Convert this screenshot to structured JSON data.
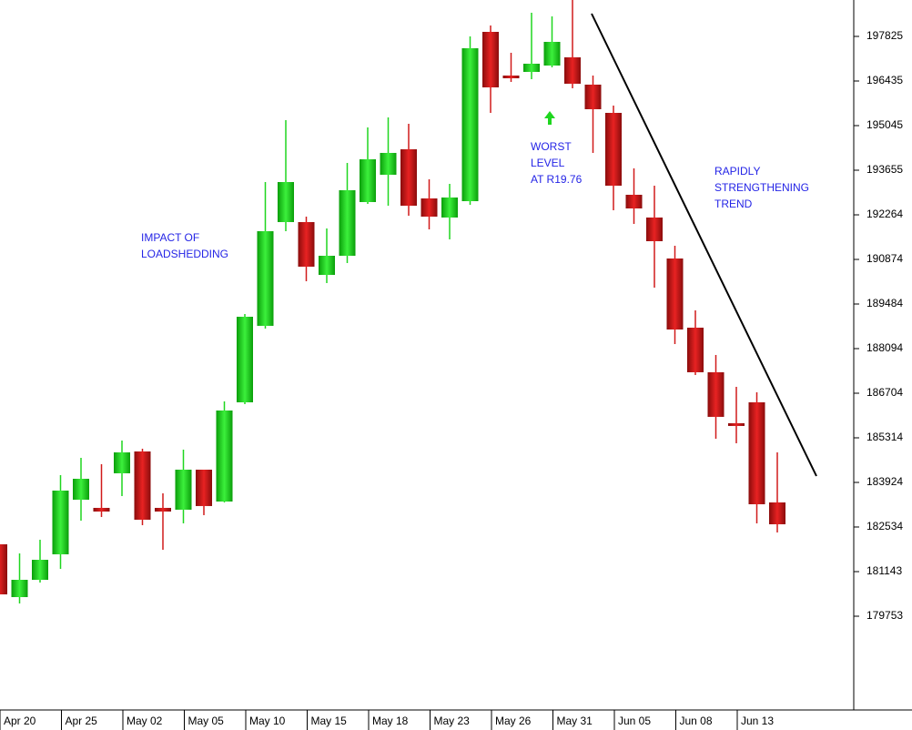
{
  "chart_data": {
    "type": "candlestick",
    "categories": [
      "Apr 20",
      null,
      null,
      "Apr 25",
      null,
      null,
      "May 02",
      null,
      null,
      "May 05",
      null,
      null,
      "May 10",
      null,
      null,
      "May 15",
      null,
      null,
      "May 18",
      null,
      null,
      "May 23",
      null,
      null,
      "May 26",
      null,
      null,
      "May 31",
      null,
      null,
      "Jun 05",
      null,
      null,
      "Jun 08",
      null,
      null,
      "Jun 13",
      null,
      null
    ],
    "open": [
      181995,
      180349,
      180888,
      181683,
      183385,
      183130,
      184208,
      184889,
      183130,
      183073,
      184321,
      183328,
      186420,
      188804,
      192038,
      192038,
      190392,
      190988,
      192662,
      193513,
      194307,
      192775,
      192180,
      192690,
      197967,
      196577,
      196719,
      196917,
      197173,
      196322,
      195442,
      192889,
      192180,
      190903,
      188747,
      187357,
      185740,
      186420,
      183300
    ],
    "high": [
      182222,
      181711,
      182137,
      184151,
      184690,
      184491,
      185229,
      184974,
      183583,
      184945,
      184321,
      186449,
      189172,
      193286,
      195215,
      192208,
      191839,
      193882,
      194988,
      195300,
      195102,
      193371,
      193229,
      197825,
      198166,
      197315,
      198563,
      198449,
      198960,
      196605,
      195669,
      193712,
      193172,
      191300,
      189286,
      187896,
      186903,
      186733,
      184860
    ],
    "low": [
      180094,
      180151,
      180803,
      181229,
      182732,
      182846,
      183498,
      182591,
      181825,
      182648,
      182903,
      183300,
      186364,
      188718,
      191754,
      190194,
      190137,
      190761,
      192605,
      192548,
      192236,
      191811,
      191499,
      192577,
      195442,
      196407,
      196492,
      196861,
      196208,
      194194,
      192407,
      191981,
      189995,
      188236,
      187272,
      185285,
      185144,
      182648,
      182364
    ],
    "close": [
      180434,
      180888,
      181512,
      183669,
      184037,
      183016,
      184860,
      182761,
      183016,
      184321,
      183187,
      186165,
      189087,
      191754,
      193286,
      190648,
      190988,
      193031,
      193995,
      194194,
      192548,
      192208,
      192804,
      197456,
      196236,
      196492,
      196974,
      197655,
      196350,
      195556,
      193172,
      192463,
      191442,
      188690,
      187357,
      185967,
      185655,
      183243,
      182619
    ],
    "up_color": "#1fd61f",
    "down_color": "#d01a1a",
    "ylim": [
      176831,
      198960
    ],
    "yticks": [
      197825,
      196435,
      195045,
      193655,
      192264,
      190874,
      189484,
      188094,
      186704,
      185314,
      183924,
      182534,
      181143,
      179753
    ],
    "annotations": [
      {
        "lines": [
          "IMPACT OF",
          "LOADSHEDDING"
        ]
      },
      {
        "lines": [
          "WORST",
          "LEVEL",
          "AT R19.76"
        ]
      },
      {
        "lines": [
          "RAPIDLY",
          "STRENGTHENING",
          "TREND"
        ]
      }
    ]
  }
}
